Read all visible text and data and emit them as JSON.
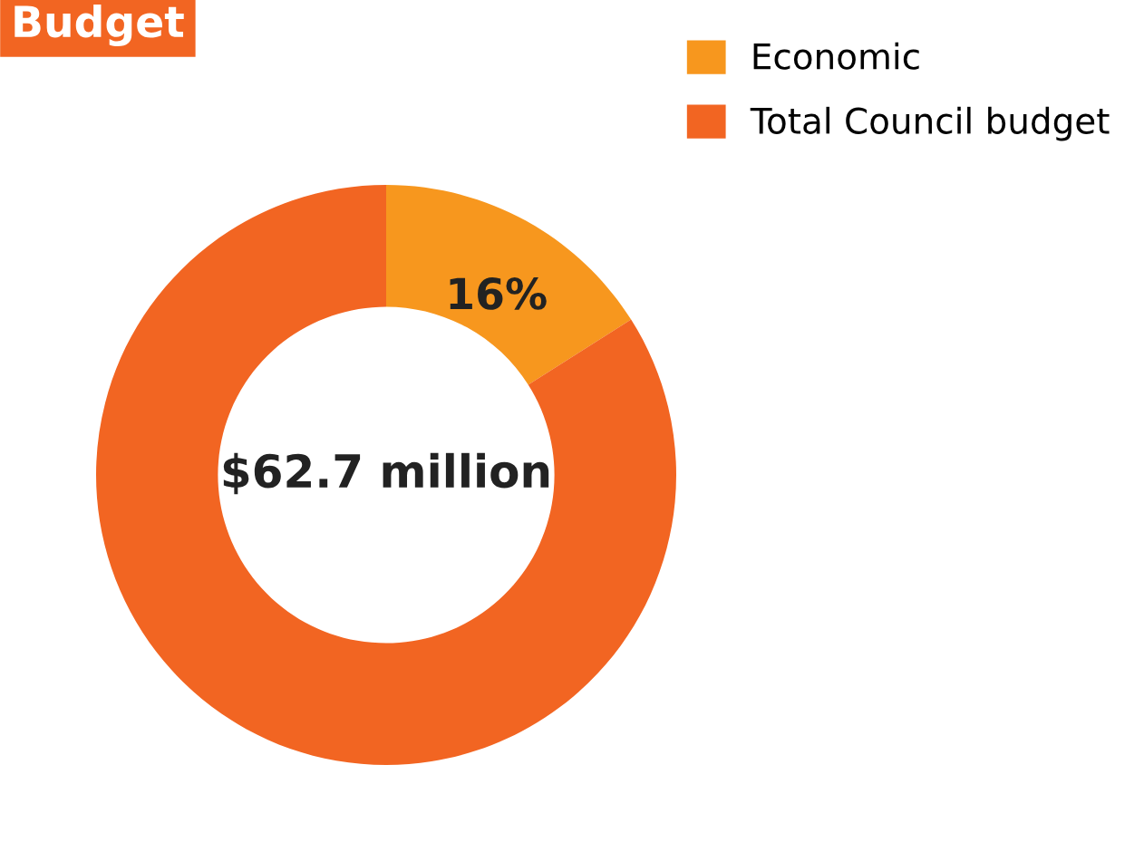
{
  "chart_data": {
    "type": "donut",
    "title": "Budget",
    "categories": [
      "Economic",
      "Total Council budget"
    ],
    "values": [
      16,
      84
    ],
    "colors": [
      "#f7971e",
      "#f26522"
    ],
    "value_labels": [
      "16%",
      null
    ],
    "annotations": [
      "$62.7 million"
    ],
    "legend": "top right"
  }
}
